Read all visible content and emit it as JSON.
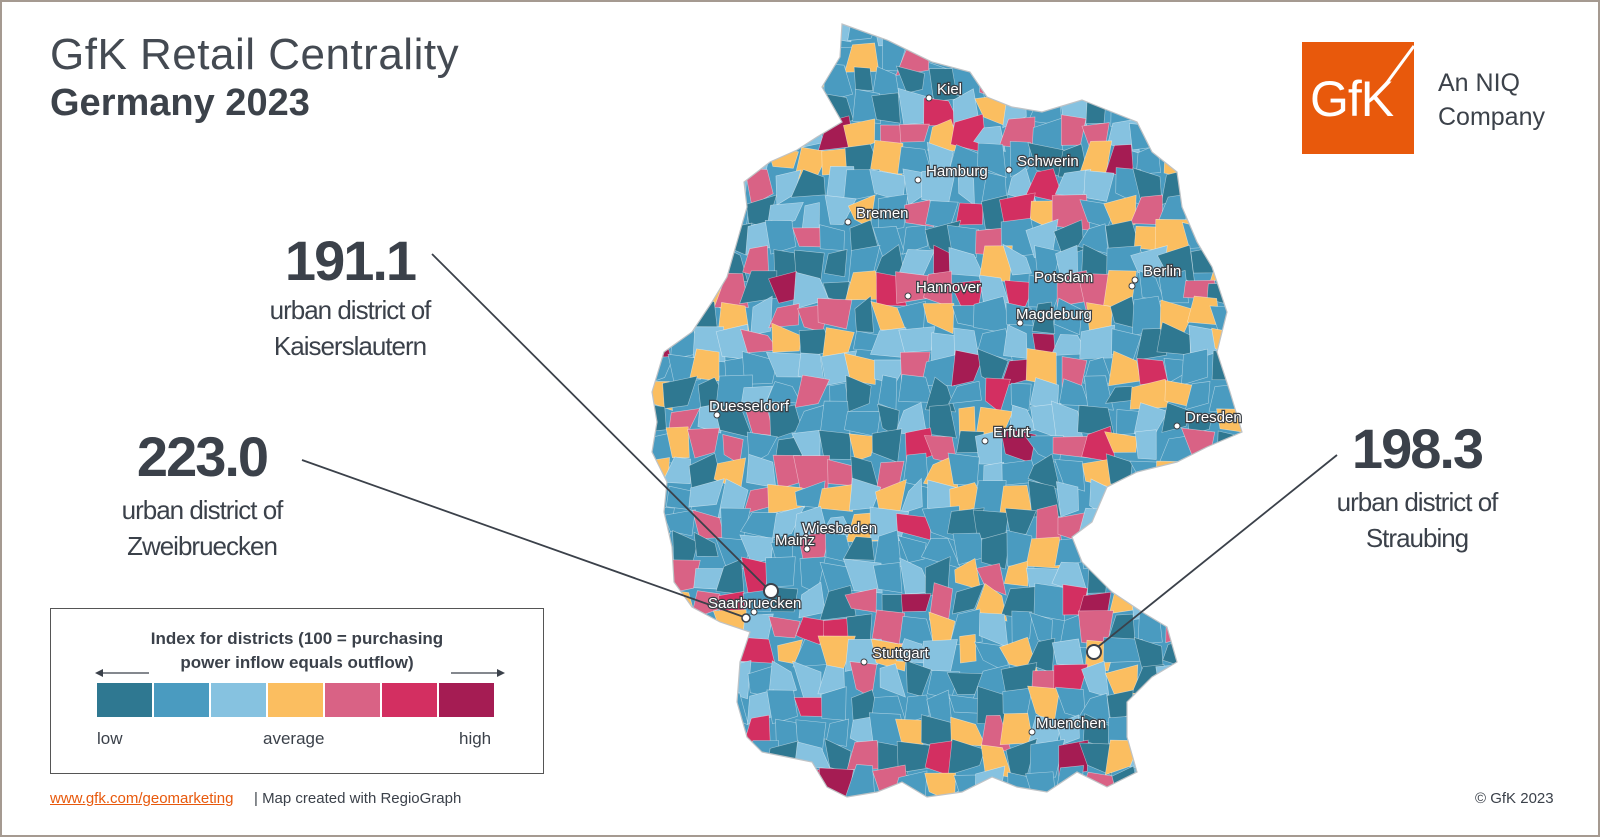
{
  "header": {
    "title": "GfK Retail Centrality",
    "subtitle": "Germany 2023"
  },
  "brand": {
    "logo_text": "GfK",
    "company_line1": "An NIQ",
    "company_line2": "Company",
    "color": "#e8590c"
  },
  "callouts": [
    {
      "value": "191.1",
      "label_line1": "urban district of",
      "label_line2": "Kaiserslautern"
    },
    {
      "value": "223.0",
      "label_line1": "urban district of",
      "label_line2": "Zweibruecken"
    },
    {
      "value": "198.3",
      "label_line1": "urban district of",
      "label_line2": "Straubing"
    }
  ],
  "map": {
    "cities": [
      "Kiel",
      "Hamburg",
      "Schwerin",
      "Bremen",
      "Hannover",
      "Potsdam",
      "Berlin",
      "Magdeburg",
      "Duesseldorf",
      "Dresden",
      "Erfurt",
      "Wiesbaden",
      "Mainz",
      "Saarbruecken",
      "Stuttgart",
      "Muenchen"
    ]
  },
  "legend": {
    "title_line1": "Index for districts (100 = purchasing",
    "title_line2": "power inflow equals outflow)",
    "low": "low",
    "average": "average",
    "high": "high",
    "colors": [
      "#2f7891",
      "#4a9bc0",
      "#86c2e0",
      "#fbbe60",
      "#d96285",
      "#d32f61",
      "#a51c53"
    ]
  },
  "footer": {
    "link": "www.gfk.com/geomarketing",
    "note": "| Map created with RegioGraph",
    "copyright": "© GfK 2023"
  }
}
